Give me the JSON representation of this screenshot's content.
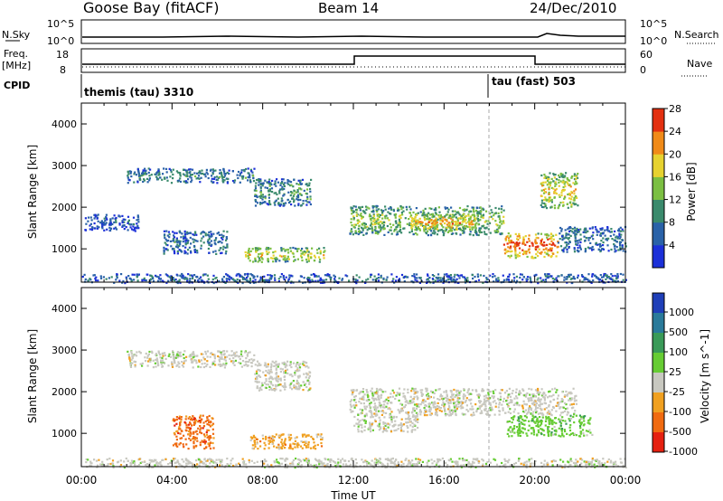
{
  "header": {
    "station": "Goose Bay (fitACF)",
    "beam": "Beam 14",
    "date": "24/Dec/2010"
  },
  "top_panels": {
    "nsky_label": "N.Sky",
    "nsearch_label": "N.Search",
    "freq_label_1": "Freq.",
    "freq_label_2": "[MHz]",
    "nave_label": "Nave",
    "cpid_label": "CPID",
    "nsky_ticks": [
      "10^5",
      "10^0"
    ],
    "nsearch_ticks": [
      "10^5",
      "10^0"
    ],
    "freq_ticks": [
      "18",
      "8"
    ],
    "nave_ticks": [
      "60",
      "0"
    ],
    "cpid_1": "themis (tau) 3310",
    "cpid_2": "tau (fast) 503"
  },
  "chart_data": [
    {
      "type": "heatmap",
      "panel": "power",
      "ylabel": "Slant Range [km]",
      "xlabel": "Time UT",
      "y_ticks": [
        "1000",
        "2000",
        "3000",
        "4000"
      ],
      "ylim": [
        200,
        4500
      ],
      "xlim": [
        0,
        24
      ],
      "x_ticks": [
        "00:00",
        "04:00",
        "08:00",
        "12:00",
        "16:00",
        "20:00",
        "00:00"
      ],
      "colorbar": {
        "label": "Power [dB]",
        "ticks": [
          "4",
          "8",
          "12",
          "16",
          "20",
          "24",
          "28"
        ],
        "colors": [
          "#1c30d8",
          "#2a62a8",
          "#3a8a6c",
          "#7bbf42",
          "#e6d230",
          "#f08a18",
          "#e33010"
        ]
      },
      "patches": [
        {
          "t0": 2.0,
          "t1": 7.6,
          "r0": 2600,
          "r1": 2950,
          "v": 0.35
        },
        {
          "t0": 7.6,
          "t1": 10.1,
          "r0": 2050,
          "r1": 2700,
          "v": 0.4
        },
        {
          "t0": 7.2,
          "t1": 10.7,
          "r0": 700,
          "r1": 1050,
          "v": 0.65
        },
        {
          "t0": 11.8,
          "t1": 18.6,
          "r0": 1350,
          "r1": 2050,
          "v": 0.55
        },
        {
          "t0": 14.5,
          "t1": 17.5,
          "r0": 1450,
          "r1": 1850,
          "v": 0.78
        },
        {
          "t0": 18.6,
          "t1": 21.0,
          "r0": 800,
          "r1": 1400,
          "v": 0.95
        },
        {
          "t0": 20.2,
          "t1": 21.9,
          "r0": 2000,
          "r1": 2850,
          "v": 0.7
        },
        {
          "t0": 21.0,
          "t1": 24.0,
          "r0": 950,
          "r1": 1550,
          "v": 0.3
        },
        {
          "t0": 0.0,
          "t1": 24.0,
          "r0": 200,
          "r1": 420,
          "v": 0.25
        },
        {
          "t0": 0.1,
          "t1": 2.5,
          "r0": 1450,
          "r1": 1850,
          "v": 0.2
        },
        {
          "t0": 3.6,
          "t1": 6.4,
          "r0": 900,
          "r1": 1450,
          "v": 0.3
        }
      ]
    },
    {
      "type": "heatmap",
      "panel": "velocity",
      "ylabel": "Slant Range [km]",
      "xlabel": "Time UT",
      "y_ticks": [
        "1000",
        "2000",
        "3000",
        "4000"
      ],
      "ylim": [
        200,
        4500
      ],
      "xlim": [
        0,
        24
      ],
      "x_ticks": [
        "00:00",
        "04:00",
        "08:00",
        "12:00",
        "16:00",
        "20:00",
        "00:00"
      ],
      "colorbar": {
        "label": "Velocity [m s^-1]",
        "ticks": [
          "1000",
          "500",
          "100",
          "25",
          "-25",
          "-100",
          "-500",
          "-1000"
        ],
        "colors": [
          "#1f3fb8",
          "#2a7a9a",
          "#3a9a58",
          "#66cc33",
          "#c8c8c0",
          "#f0a020",
          "#f06a10",
          "#e52010"
        ]
      },
      "patches": [
        {
          "t0": 2.0,
          "t1": 7.6,
          "r0": 2600,
          "r1": 3000,
          "v": 4
        },
        {
          "t0": 7.6,
          "t1": 10.1,
          "r0": 2050,
          "r1": 2750,
          "v": 4
        },
        {
          "t0": 7.4,
          "t1": 10.6,
          "r0": 650,
          "r1": 1000,
          "v": 5
        },
        {
          "t0": 11.8,
          "t1": 21.8,
          "r0": 1450,
          "r1": 2100,
          "v": 4
        },
        {
          "t0": 18.7,
          "t1": 22.5,
          "r0": 950,
          "r1": 1450,
          "v": 3
        },
        {
          "t0": 4.0,
          "t1": 5.8,
          "r0": 650,
          "r1": 1450,
          "v": 6
        },
        {
          "t0": 0.0,
          "t1": 24.0,
          "r0": 200,
          "r1": 420,
          "v": 4
        },
        {
          "t0": 12.0,
          "t1": 14.8,
          "r0": 1050,
          "r1": 1450,
          "v": 4
        }
      ]
    }
  ]
}
